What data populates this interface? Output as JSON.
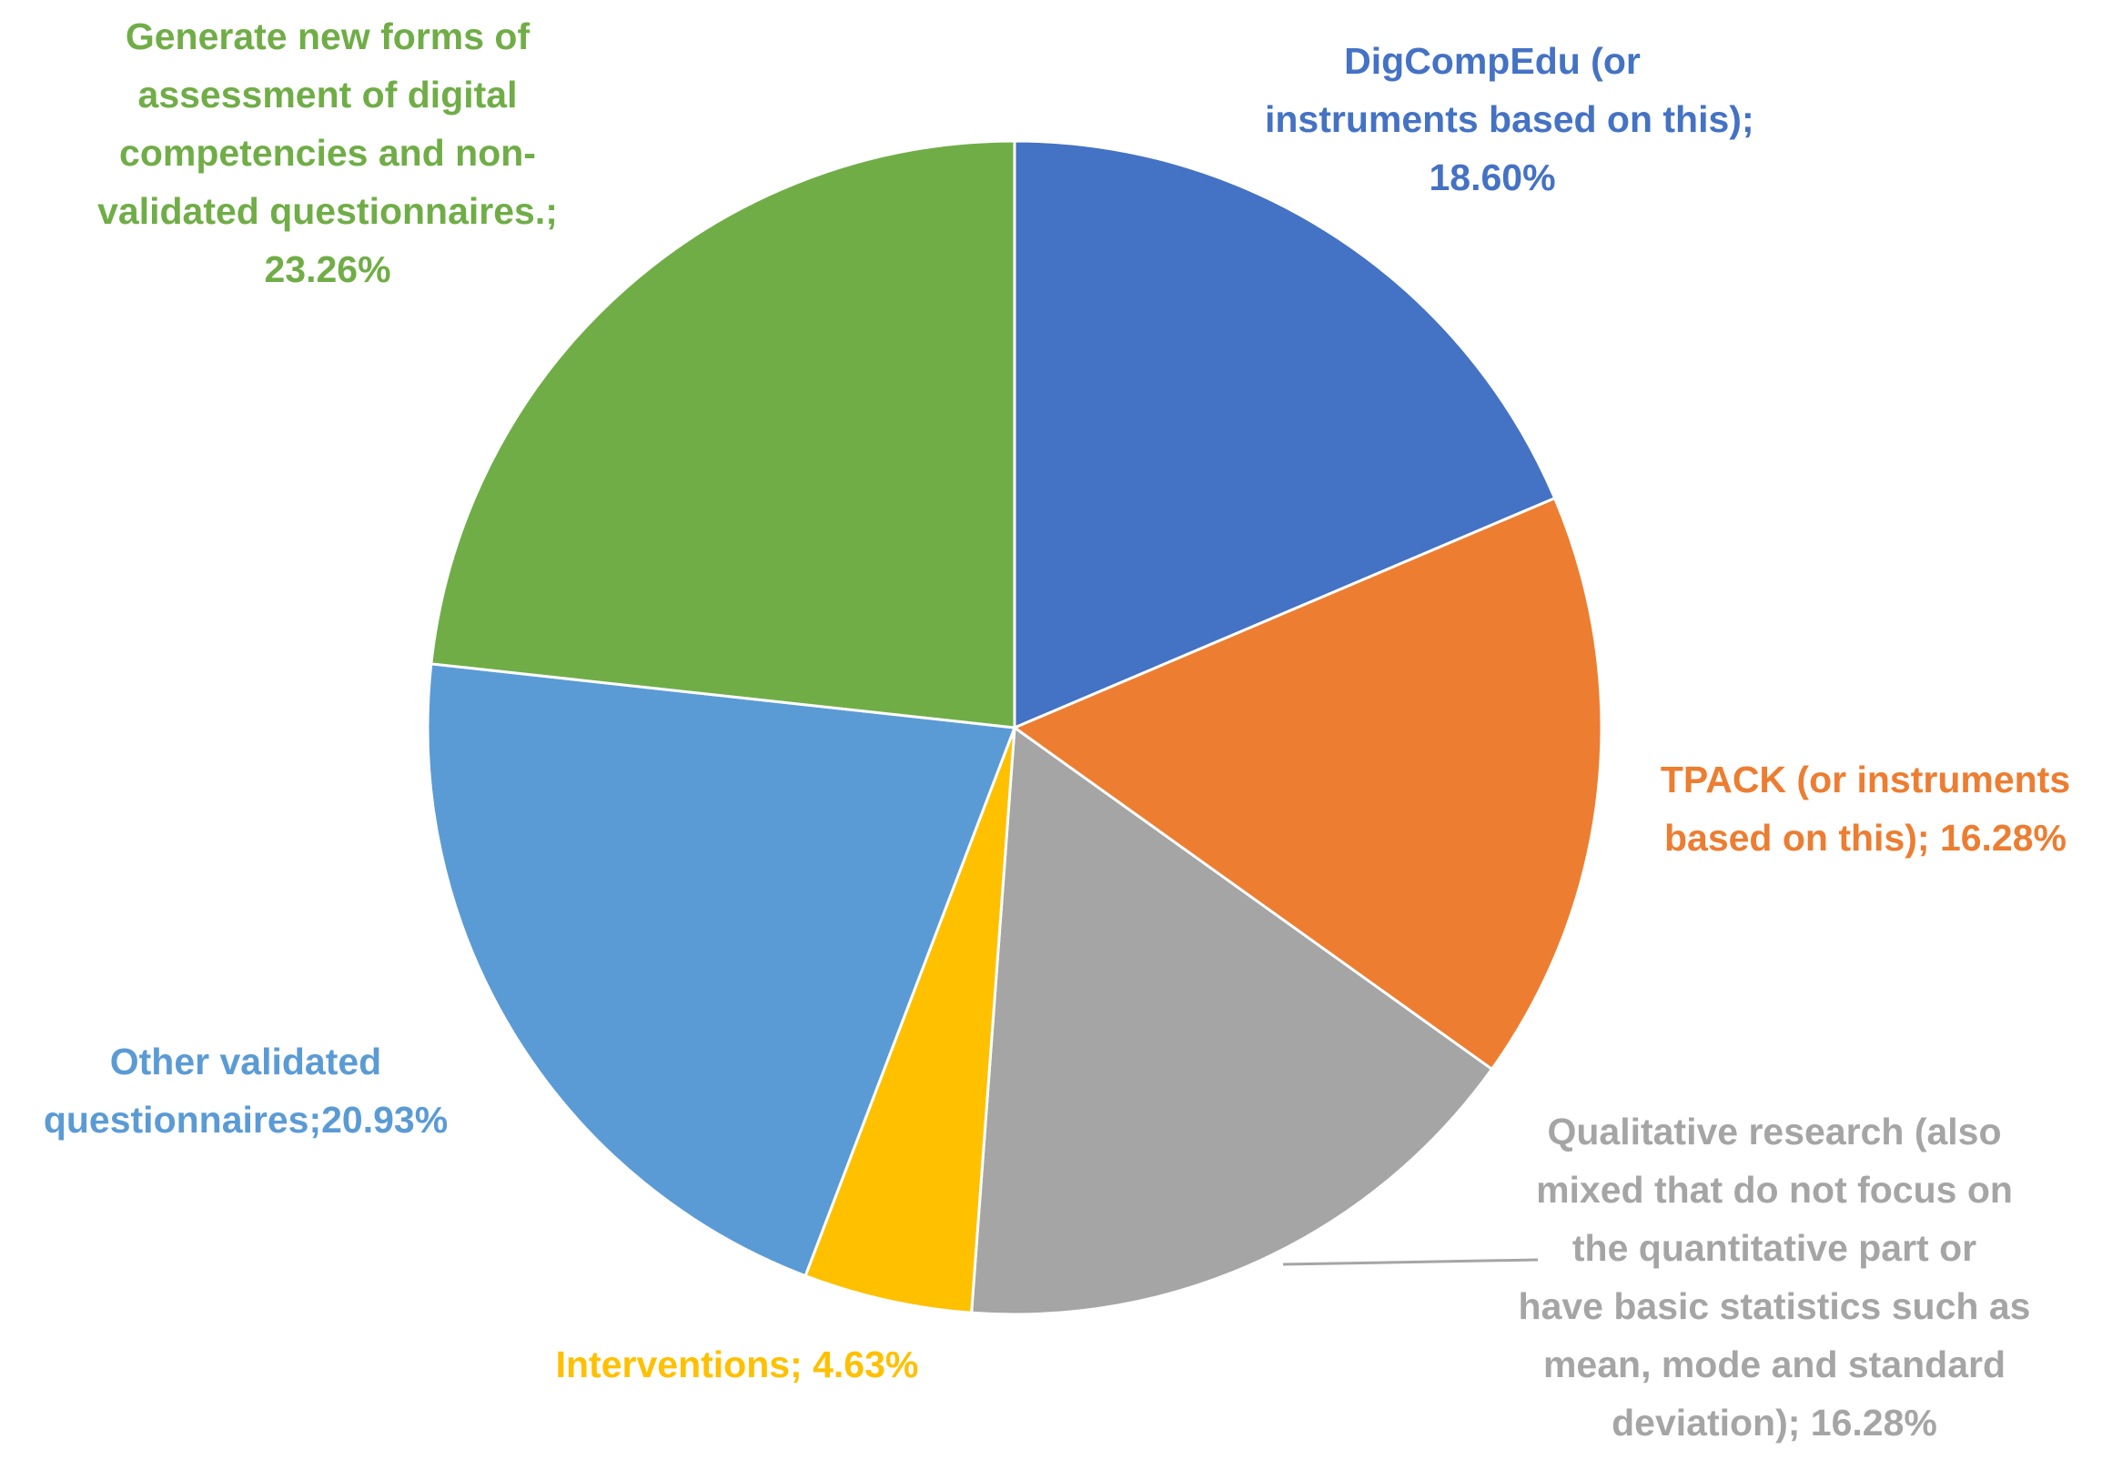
{
  "chart_data": {
    "type": "pie",
    "start_angle_deg": 0,
    "direction": "clockwise",
    "slices": [
      {
        "label_lines": [
          "DigCompEdu (or",
          "instruments based on this);",
          "18.60%"
        ],
        "value": 18.6,
        "color": "#4472C4"
      },
      {
        "label_lines": [
          "TPACK (or instruments",
          "based on this); 16.28%"
        ],
        "value": 16.28,
        "color": "#ED7D31"
      },
      {
        "label_lines": [
          "Qualitative research (also",
          "mixed that do not focus on",
          "the quantitative part or",
          "have basic statistics such as",
          "mean, mode and standard",
          "deviation); 16.28%"
        ],
        "value": 16.28,
        "color": "#A5A5A5"
      },
      {
        "label_lines": [
          "Interventions; 4.63%"
        ],
        "value": 4.63,
        "color": "#FFC000"
      },
      {
        "label_lines": [
          "Other validated",
          "questionnaires;20.93%"
        ],
        "value": 20.93,
        "color": "#5B9BD5"
      },
      {
        "label_lines": [
          "Generate new forms of",
          "assessment of digital",
          "competencies and non-",
          "validated questionnaires.;",
          "23.26%"
        ],
        "value": 23.26,
        "color": "#70AD47"
      }
    ]
  }
}
